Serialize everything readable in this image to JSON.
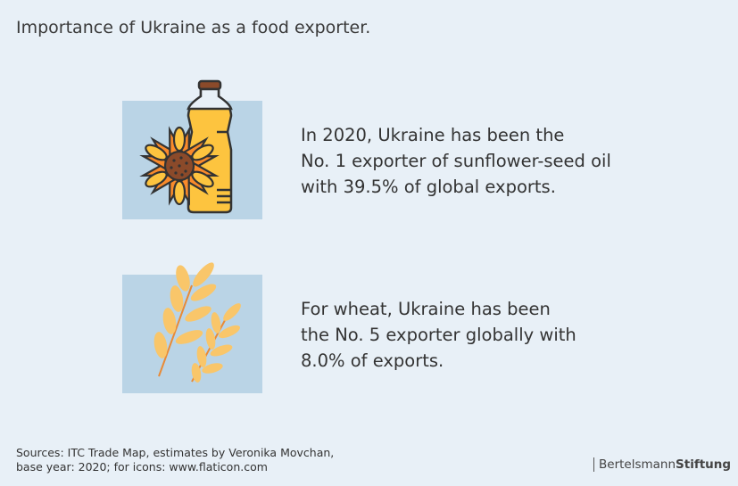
{
  "title": "Importance of Ukraine as a food exporter.",
  "items": [
    {
      "icon": "sunflower-oil-bottle-icon",
      "lines": [
        "In 2020, Ukraine has been the",
        "No. 1 exporter of sunflower-seed oil",
        "with 39.5% of global exports."
      ]
    },
    {
      "icon": "wheat-icon",
      "lines": [
        "For wheat, Ukraine has been",
        "the No. 5 exporter globally with",
        "8.0% of exports."
      ]
    }
  ],
  "source": [
    "Sources: ITC Trade Map, estimates by Veronika Movchan,",
    "base year: 2020; for icons: www.flaticon.com"
  ],
  "logo": {
    "part1": "Bertelsmann",
    "part2": "Stiftung"
  },
  "colors": {
    "background": "#e8f0f7",
    "icon_box": "#bad4e6",
    "oil": "#fdc43f",
    "wheat": "#f9c66a"
  }
}
